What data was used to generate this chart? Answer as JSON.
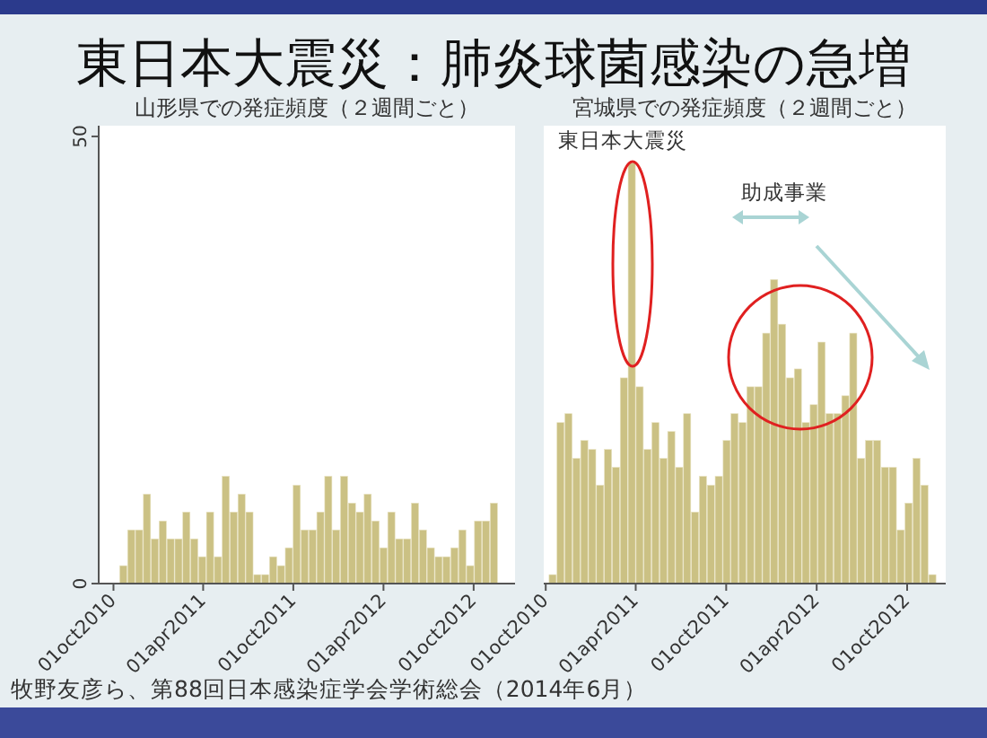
{
  "chart_data": [
    {
      "type": "bar",
      "title": "東日本大震災：肺炎球菌感染の急増",
      "subtitle": "山形県での発症頻度（２週間ごと）",
      "color": "#cbc184",
      "x": [
        "2010-10-21",
        "2010-11-06",
        "2010-11-22",
        "2010-12-08",
        "2010-12-24",
        "2011-01-09",
        "2011-01-25",
        "2011-02-10",
        "2011-02-26",
        "2011-03-14",
        "2011-03-30",
        "2011-04-15",
        "2011-05-01",
        "2011-05-17",
        "2011-06-02",
        "2011-06-18",
        "2011-07-04",
        "2011-07-20",
        "2011-08-05",
        "2011-08-21",
        "2011-09-06",
        "2011-09-22",
        "2011-10-08",
        "2011-10-24",
        "2011-11-09",
        "2011-11-25",
        "2011-12-11",
        "2011-12-27",
        "2012-01-12",
        "2012-01-28",
        "2012-02-13",
        "2012-02-29",
        "2012-03-16",
        "2012-04-01",
        "2012-04-17",
        "2012-05-03",
        "2012-05-19",
        "2012-06-04",
        "2012-06-20",
        "2012-07-06",
        "2012-07-22",
        "2012-08-07",
        "2012-08-23",
        "2012-09-08",
        "2012-09-24",
        "2012-10-10",
        "2012-10-26",
        "2012-11-11"
      ],
      "values": [
        2,
        6,
        6,
        10,
        5,
        7,
        5,
        5,
        8,
        5,
        3,
        8,
        3,
        12,
        8,
        10,
        8,
        1,
        1,
        3,
        2,
        4,
        11,
        6,
        6,
        8,
        12,
        6,
        12,
        9,
        8,
        10,
        7,
        4,
        8,
        5,
        5,
        9,
        6,
        4,
        3,
        3,
        4,
        6,
        2,
        7,
        7,
        9
      ],
      "xlim": [
        "2010-09-01",
        "2012-12-24"
      ],
      "xticks": [
        {
          "value": "2010-10-01",
          "label": "01oct2010"
        },
        {
          "value": "2011-04-01",
          "label": "01apr2011"
        },
        {
          "value": "2011-10-01",
          "label": "01oct2011"
        },
        {
          "value": "2012-04-01",
          "label": "01apr2012"
        },
        {
          "value": "2012-10-01",
          "label": "01oct2012"
        }
      ],
      "ylim": [
        0,
        51.2
      ],
      "yticks": [
        0,
        50
      ],
      "annotations": [
        "牧野友彦ら、第88回日本感染症学会学術総会（2014年6月）"
      ]
    },
    {
      "type": "bar",
      "subtitle": "宮城県での発症頻度（２週間ごと）",
      "color": "#cbc184",
      "tick_labels": "x",
      "x": [
        "2010-10-15",
        "2010-10-31",
        "2010-11-16",
        "2010-12-02",
        "2010-12-18",
        "2011-01-03",
        "2011-01-19",
        "2011-02-04",
        "2011-02-20",
        "2011-03-08",
        "2011-03-24",
        "2011-04-09",
        "2011-04-25",
        "2011-05-11",
        "2011-05-27",
        "2011-06-12",
        "2011-06-28",
        "2011-07-14",
        "2011-07-30",
        "2011-08-15",
        "2011-08-31",
        "2011-09-16",
        "2011-10-02",
        "2011-10-18",
        "2011-11-03",
        "2011-11-19",
        "2011-12-05",
        "2011-12-21",
        "2012-01-06",
        "2012-01-22",
        "2012-02-07",
        "2012-02-23",
        "2012-03-10",
        "2012-03-26",
        "2012-04-11",
        "2012-04-27",
        "2012-05-13",
        "2012-05-29",
        "2012-06-14",
        "2012-06-30",
        "2012-07-16",
        "2012-08-01",
        "2012-08-17",
        "2012-09-02",
        "2012-09-18",
        "2012-10-04",
        "2012-10-20",
        "2012-11-05",
        "2012-11-21"
      ],
      "values": [
        1,
        18,
        19,
        14,
        16,
        15,
        11,
        15,
        13,
        23,
        47,
        22,
        15,
        18,
        14,
        17,
        13,
        19,
        8,
        12,
        11,
        12,
        16,
        19,
        18,
        22,
        22,
        28,
        34,
        29,
        23,
        24,
        18,
        20,
        27,
        19,
        19,
        21,
        28,
        14,
        16,
        16,
        13,
        13,
        6,
        9,
        14,
        11,
        1
      ],
      "xlim": [
        "2010-09-27",
        "2012-12-18"
      ],
      "xticks": [
        {
          "value": "2010-10-01",
          "label": "01oct2010"
        },
        {
          "value": "2011-04-01",
          "label": "01apr2011"
        },
        {
          "value": "2011-10-01",
          "label": "01oct2011"
        },
        {
          "value": "2012-04-01",
          "label": "01apr2012"
        },
        {
          "value": "2012-10-01",
          "label": "01oct2012"
        }
      ],
      "ylim": [
        0,
        51.2
      ],
      "annotations": [
        "東日本大震災",
        "助成事業"
      ]
    }
  ]
}
